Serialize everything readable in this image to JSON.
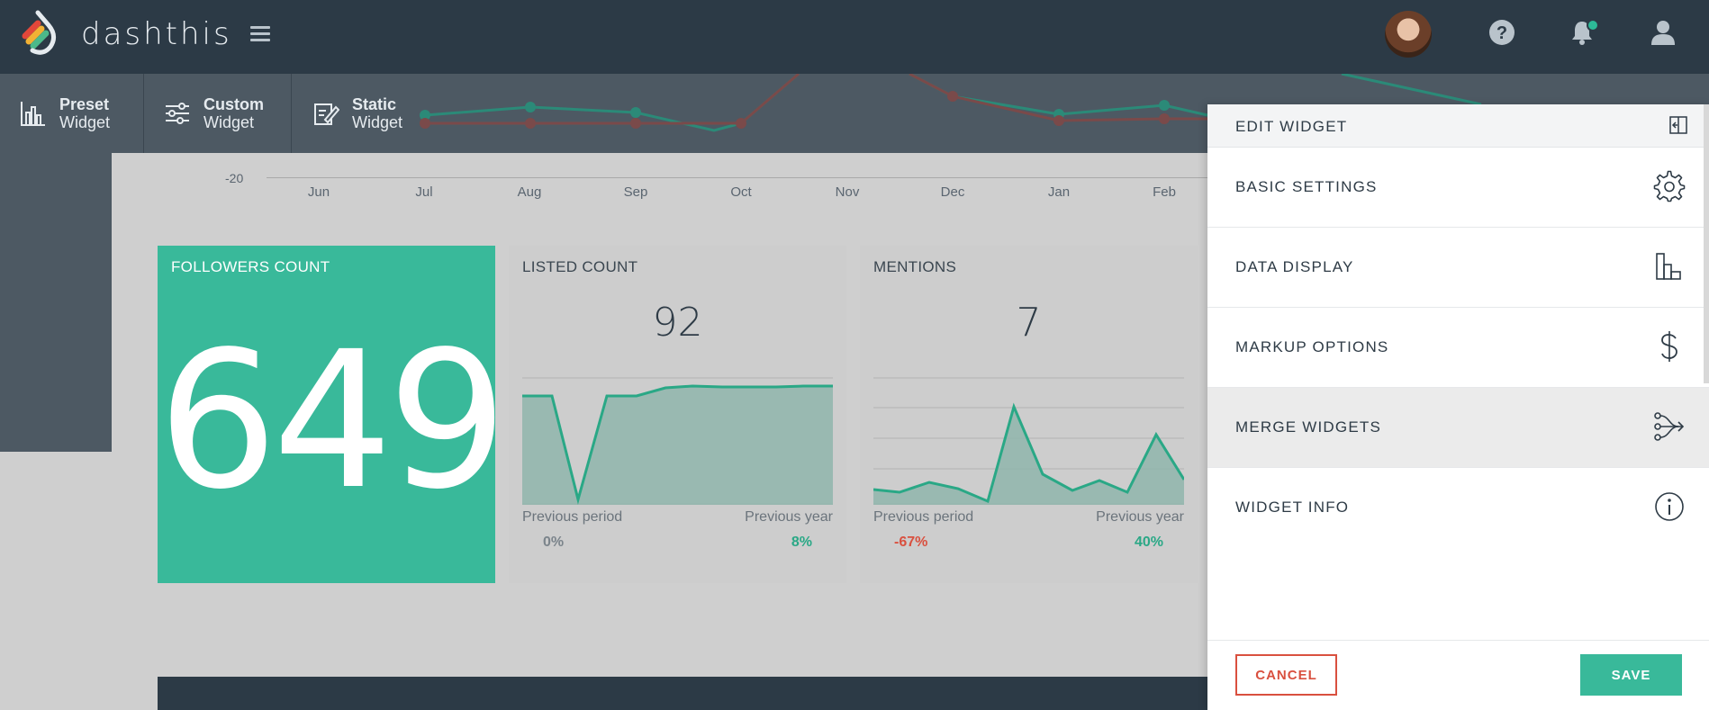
{
  "header": {
    "brand": "dashthis",
    "icons": [
      "hamburger-menu-icon",
      "help-icon",
      "bell-icon",
      "user-icon"
    ],
    "accent_color": "#2dba98"
  },
  "widget_bar": {
    "items": [
      {
        "bold": "Preset",
        "normal": "Widget",
        "icon": "bar-chart-icon"
      },
      {
        "bold": "Custom",
        "normal": "Widget",
        "icon": "sliders-icon"
      },
      {
        "bold": "Static",
        "normal": "Widget",
        "icon": "edit-icon"
      }
    ]
  },
  "bg_chart": {
    "y_tick": "-20",
    "x_labels": [
      "Jun",
      "Jul",
      "Aug",
      "Sep",
      "Oct",
      "Nov",
      "Dec",
      "Jan",
      "Feb"
    ]
  },
  "cards": {
    "followers": {
      "title": "FOLLOWERS COUNT",
      "value": "649",
      "color": "#39b99a"
    },
    "listed": {
      "title": "LISTED COUNT",
      "value": "92",
      "prev_period_label": "Previous period",
      "prev_period_value": "0%",
      "prev_year_label": "Previous year",
      "prev_year_value": "8%"
    },
    "mentions": {
      "title": "MENTIONS",
      "value": "7",
      "prev_period_label": "Previous period",
      "prev_period_value": "-67%",
      "prev_year_label": "Previous year",
      "prev_year_value": "40%"
    }
  },
  "panel": {
    "title": "EDIT WIDGET",
    "items": [
      {
        "label": "BASIC SETTINGS",
        "icon": "gear-icon"
      },
      {
        "label": "DATA DISPLAY",
        "icon": "bar-chart-icon"
      },
      {
        "label": "MARKUP OPTIONS",
        "icon": "dollar-icon"
      },
      {
        "label": "MERGE WIDGETS",
        "icon": "merge-icon"
      },
      {
        "label": "WIDGET INFO",
        "icon": "info-icon"
      }
    ],
    "cancel_label": "CANCEL",
    "save_label": "SAVE"
  }
}
